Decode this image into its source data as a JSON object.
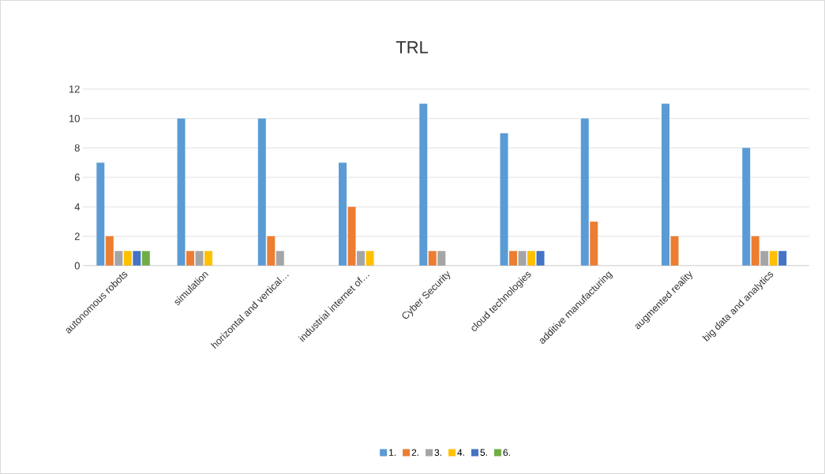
{
  "chart_data": {
    "type": "bar",
    "title": "TRL",
    "categories": [
      "autonomous robots",
      "simulation",
      "horizontal and vertical…",
      "industrial internet of…",
      "Cyber Security",
      "cloud technologies",
      "additive manufacturing",
      "augmented reality",
      "big data and analytics"
    ],
    "series": [
      {
        "name": "1.",
        "color": "#5b9bd5",
        "values": [
          7,
          10,
          10,
          7,
          11,
          9,
          10,
          11,
          8
        ]
      },
      {
        "name": "2.",
        "color": "#ed7d31",
        "values": [
          2,
          1,
          2,
          4,
          1,
          1,
          3,
          2,
          2
        ]
      },
      {
        "name": "3.",
        "color": "#a5a5a5",
        "values": [
          1,
          1,
          1,
          1,
          1,
          1,
          null,
          null,
          1
        ]
      },
      {
        "name": "4.",
        "color": "#ffc000",
        "values": [
          1,
          1,
          null,
          1,
          null,
          1,
          null,
          null,
          1
        ]
      },
      {
        "name": "5.",
        "color": "#4472c4",
        "values": [
          1,
          null,
          null,
          null,
          null,
          1,
          null,
          null,
          1
        ]
      },
      {
        "name": "6.",
        "color": "#70ad47",
        "values": [
          1,
          null,
          null,
          null,
          null,
          null,
          null,
          null,
          null
        ]
      }
    ],
    "ylim": [
      0,
      12
    ],
    "yticks": [
      0,
      2,
      4,
      6,
      8,
      10,
      12
    ],
    "grid": "y",
    "legend": "bottom"
  }
}
